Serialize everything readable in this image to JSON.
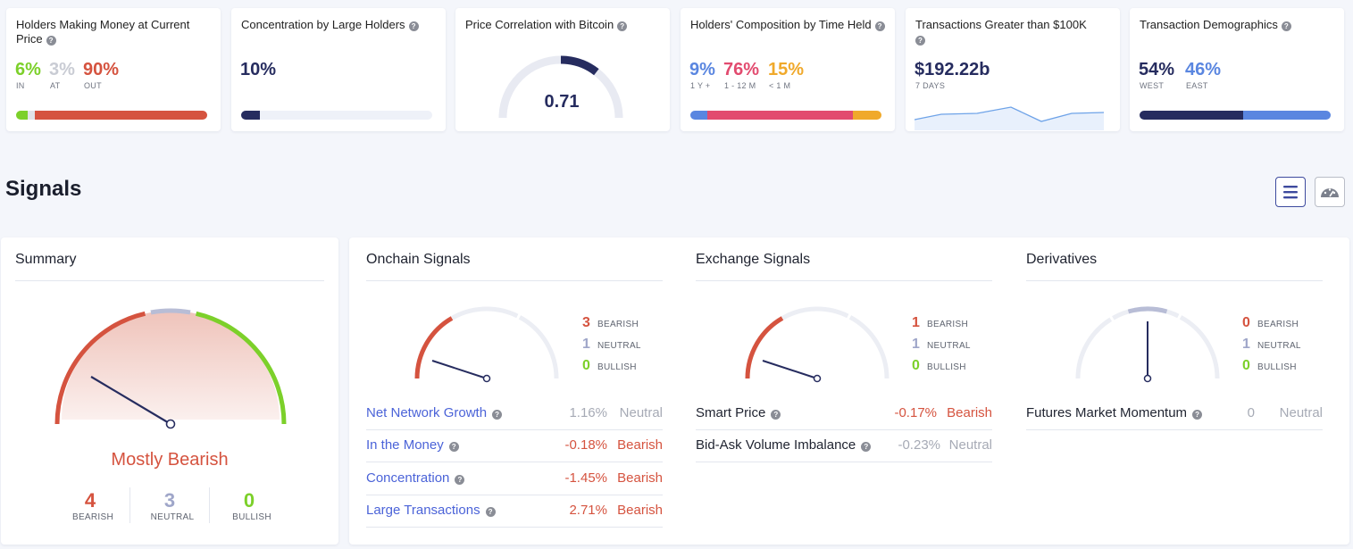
{
  "cards": {
    "money": {
      "title": "Holders Making Money at Current Price",
      "in_value": "6%",
      "in_label": "IN",
      "at_value": "3%",
      "at_label": "AT",
      "out_value": "90%",
      "out_label": "OUT",
      "bar": [
        6,
        3,
        90
      ]
    },
    "concentration": {
      "title": "Concentration by Large Holders",
      "value": "10%",
      "bar_fill": 10
    },
    "correlation": {
      "title": "Price Correlation with Bitcoin",
      "value": "0.71",
      "gauge_fraction": 0.71
    },
    "composition": {
      "title": "Holders' Composition by Time Held",
      "a_value": "9%",
      "a_label": "1 Y +",
      "b_value": "76%",
      "b_label": "1 - 12 M",
      "c_value": "15%",
      "c_label": "< 1 M",
      "bar": [
        9,
        76,
        15
      ]
    },
    "transactions": {
      "title": "Transactions Greater than $100K",
      "value": "$192.22b",
      "sub": "7 DAYS"
    },
    "demographics": {
      "title": "Transaction Demographics",
      "west_value": "54%",
      "west_label": "WEST",
      "east_value": "46%",
      "east_label": "EAST",
      "bar": [
        54,
        46
      ]
    }
  },
  "signals": {
    "title": "Signals",
    "list_icon": "list-icon",
    "gauge_icon": "speedometer-icon"
  },
  "summary": {
    "title": "Summary",
    "verdict": "Mostly Bearish",
    "bearish": "4",
    "neutral": "3",
    "bullish": "0",
    "bearish_label": "BEARISH",
    "neutral_label": "NEUTRAL",
    "bullish_label": "BULLISH"
  },
  "onchain": {
    "title": "Onchain Signals",
    "bearish": "3",
    "neutral": "1",
    "bullish": "0",
    "bearish_label": "BEARISH",
    "neutral_label": "NEUTRAL",
    "bullish_label": "BULLISH",
    "rows": [
      {
        "name": "Net Network Growth",
        "pct": "1.16%",
        "status": "Neutral"
      },
      {
        "name": "In the Money",
        "pct": "-0.18%",
        "status": "Bearish"
      },
      {
        "name": "Concentration",
        "pct": "-1.45%",
        "status": "Bearish"
      },
      {
        "name": "Large Transactions",
        "pct": "2.71%",
        "status": "Bearish"
      }
    ]
  },
  "exchange": {
    "title": "Exchange Signals",
    "bearish": "1",
    "neutral": "1",
    "bullish": "0",
    "bearish_label": "BEARISH",
    "neutral_label": "NEUTRAL",
    "bullish_label": "BULLISH",
    "rows": [
      {
        "name": "Smart Price",
        "pct": "-0.17%",
        "status": "Bearish"
      },
      {
        "name": "Bid-Ask Volume Imbalance",
        "pct": "-0.23%",
        "status": "Neutral"
      }
    ]
  },
  "derivatives": {
    "title": "Derivatives",
    "bearish": "0",
    "neutral": "1",
    "bullish": "0",
    "bearish_label": "BEARISH",
    "neutral_label": "NEUTRAL",
    "bullish_label": "BULLISH",
    "rows": [
      {
        "name": "Futures Market Momentum",
        "pct": "0",
        "status": "Neutral"
      }
    ]
  },
  "colors": {
    "bearish": "#d5533f",
    "neutral": "#9fa6c9",
    "bullish": "#7cd02a",
    "navy": "#262c5f",
    "blue": "#5a86e0",
    "pink": "#e24b6f",
    "orange": "#f0a92b"
  }
}
